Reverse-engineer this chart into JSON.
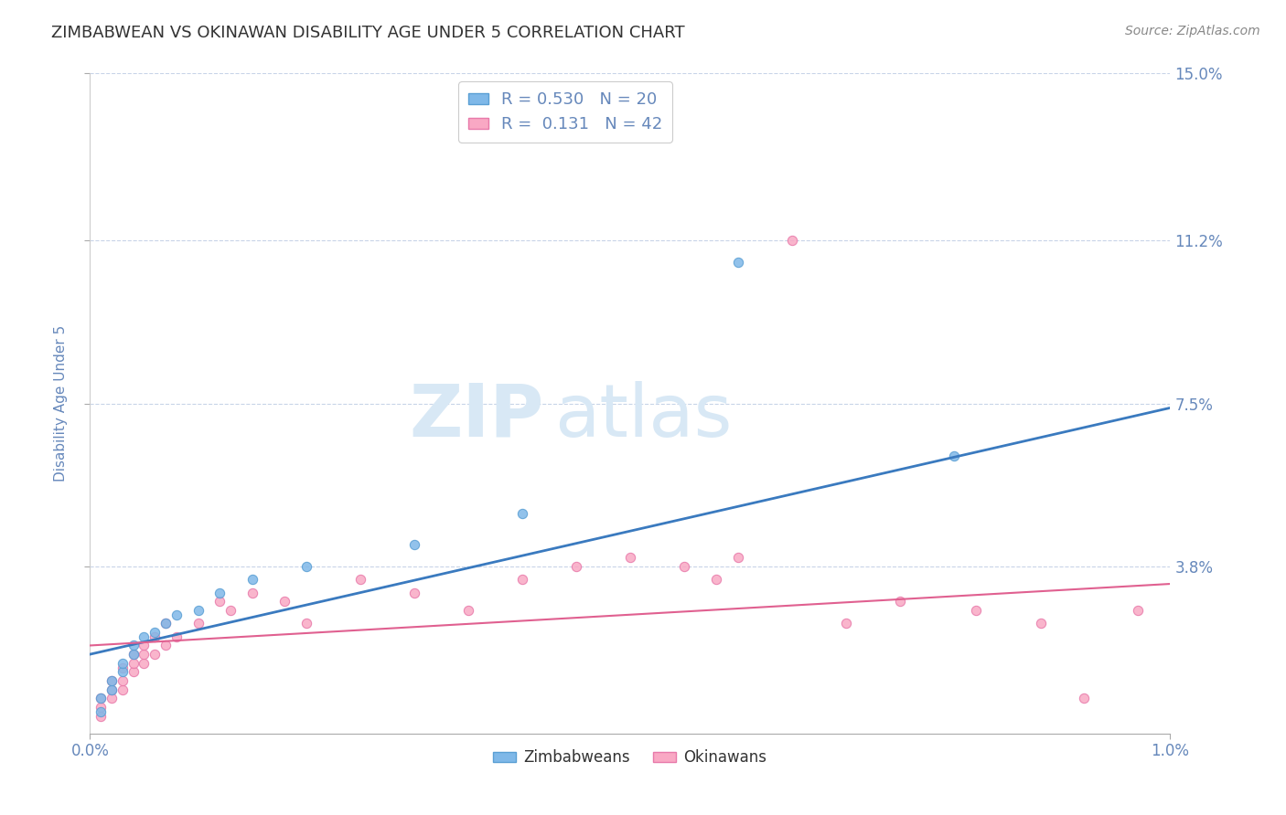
{
  "title": "ZIMBABWEAN VS OKINAWAN DISABILITY AGE UNDER 5 CORRELATION CHART",
  "source_text": "Source: ZipAtlas.com",
  "ylabel": "Disability Age Under 5",
  "xlim": [
    0.0,
    0.01
  ],
  "ylim": [
    0.0,
    0.15
  ],
  "yticks": [
    0.038,
    0.075,
    0.112,
    0.15
  ],
  "yticklabels": [
    "3.8%",
    "7.5%",
    "11.2%",
    "15.0%"
  ],
  "xticks": [
    0.0,
    0.01
  ],
  "xticklabels": [
    "0.0%",
    "1.0%"
  ],
  "zimbabwe_color": "#7fb8e8",
  "zimbabwe_edge_color": "#5a9fd4",
  "okinawa_color": "#f9a8c4",
  "okinawa_edge_color": "#e87aaa",
  "zimbabwe_line_color": "#3a7abf",
  "okinawa_line_color": "#e06090",
  "zimbabwe_R": 0.53,
  "zimbabwe_N": 20,
  "okinawa_R": 0.131,
  "okinawa_N": 42,
  "background_color": "#ffffff",
  "grid_color": "#c8d4e8",
  "title_color": "#333333",
  "axis_label_color": "#6688bb",
  "tick_label_color": "#6688bb",
  "legend_label_zimbabwe": "Zimbabweans",
  "legend_label_okinawa": "Okinawans",
  "zimbabwe_points_x": [
    0.0001,
    0.0001,
    0.0002,
    0.0002,
    0.0003,
    0.0003,
    0.0004,
    0.0004,
    0.0005,
    0.0006,
    0.0007,
    0.0008,
    0.001,
    0.0012,
    0.0015,
    0.002,
    0.003,
    0.004,
    0.006,
    0.008
  ],
  "zimbabwe_points_y": [
    0.005,
    0.008,
    0.01,
    0.012,
    0.014,
    0.016,
    0.018,
    0.02,
    0.022,
    0.023,
    0.025,
    0.027,
    0.028,
    0.032,
    0.035,
    0.038,
    0.043,
    0.05,
    0.107,
    0.063
  ],
  "okinawa_points_x": [
    0.0001,
    0.0001,
    0.0001,
    0.0002,
    0.0002,
    0.0002,
    0.0003,
    0.0003,
    0.0003,
    0.0004,
    0.0004,
    0.0004,
    0.0005,
    0.0005,
    0.0005,
    0.0006,
    0.0006,
    0.0007,
    0.0007,
    0.0008,
    0.001,
    0.0012,
    0.0013,
    0.0015,
    0.0018,
    0.002,
    0.0025,
    0.003,
    0.0035,
    0.004,
    0.0045,
    0.005,
    0.0055,
    0.0058,
    0.006,
    0.0065,
    0.007,
    0.0075,
    0.0082,
    0.0088,
    0.0092,
    0.0097
  ],
  "okinawa_points_y": [
    0.004,
    0.006,
    0.008,
    0.008,
    0.01,
    0.012,
    0.01,
    0.012,
    0.015,
    0.014,
    0.016,
    0.018,
    0.016,
    0.018,
    0.02,
    0.018,
    0.022,
    0.02,
    0.025,
    0.022,
    0.025,
    0.03,
    0.028,
    0.032,
    0.03,
    0.025,
    0.035,
    0.032,
    0.028,
    0.035,
    0.038,
    0.04,
    0.038,
    0.035,
    0.04,
    0.112,
    0.025,
    0.03,
    0.028,
    0.025,
    0.008,
    0.028
  ],
  "zimbabwe_trend_x0": 0.0,
  "zimbabwe_trend_y0": 0.018,
  "zimbabwe_trend_x1": 0.01,
  "zimbabwe_trend_y1": 0.074,
  "okinawa_trend_x0": 0.0,
  "okinawa_trend_y0": 0.02,
  "okinawa_trend_x1": 0.01,
  "okinawa_trend_y1": 0.034
}
